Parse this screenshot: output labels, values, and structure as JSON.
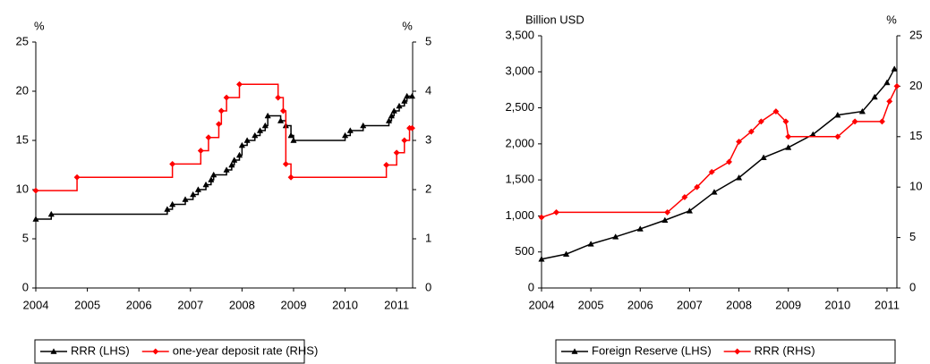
{
  "chart_data": [
    {
      "type": "line",
      "xlim": [
        2004,
        2011.31
      ],
      "xticks": [
        2004,
        2005,
        2006,
        2007,
        2008,
        2009,
        2010,
        2011
      ],
      "ylabel": "%",
      "ylim": [
        0,
        25
      ],
      "yticks": [
        0,
        5,
        10,
        15,
        20,
        25
      ],
      "y2label": "%",
      "y2lim": [
        0,
        5
      ],
      "y2ticks": [
        0,
        1,
        2,
        3,
        4,
        5
      ],
      "legend": "bottom",
      "series": [
        {
          "name": "RRR (LHS)",
          "color": "#000000",
          "marker": "triangle",
          "style": "step",
          "x": [
            2004.0,
            2004.3,
            2006.55,
            2006.65,
            2006.9,
            2007.05,
            2007.15,
            2007.3,
            2007.4,
            2007.45,
            2007.7,
            2007.8,
            2007.85,
            2007.95,
            2008.0,
            2008.1,
            2008.25,
            2008.35,
            2008.45,
            2008.5,
            2008.75,
            2008.85,
            2008.95,
            2009.0,
            2010.0,
            2010.1,
            2010.35,
            2010.85,
            2010.9,
            2010.95,
            2011.05,
            2011.15,
            2011.2,
            2011.3
          ],
          "values": [
            7,
            7.5,
            8,
            8.5,
            9,
            9.5,
            10,
            10.5,
            11,
            11.5,
            12,
            12.5,
            13,
            13.5,
            14.5,
            15,
            15.5,
            16,
            16.5,
            17.5,
            17,
            16.5,
            15.5,
            15,
            15.5,
            16,
            16.5,
            17,
            17.5,
            18,
            18.5,
            19,
            19.5,
            19.5
          ]
        },
        {
          "name": "one-year deposit rate (RHS)",
          "color": "#ff0000",
          "marker": "diamond",
          "style": "step",
          "axis": "y2",
          "x": [
            2004.0,
            2004.8,
            2006.65,
            2007.2,
            2007.35,
            2007.55,
            2007.6,
            2007.7,
            2007.95,
            2008.7,
            2008.8,
            2008.85,
            2008.95,
            2010.8,
            2011.0,
            2011.15,
            2011.25,
            2011.3
          ],
          "values": [
            1.98,
            2.25,
            2.52,
            2.79,
            3.06,
            3.33,
            3.6,
            3.87,
            4.14,
            3.87,
            3.6,
            2.52,
            2.25,
            2.5,
            2.75,
            3.0,
            3.25,
            3.25
          ]
        }
      ]
    },
    {
      "type": "line",
      "xlim": [
        2004,
        2011.2
      ],
      "xticks": [
        2004,
        2005,
        2006,
        2007,
        2008,
        2009,
        2010,
        2011
      ],
      "ylabel": "Billion USD",
      "ylim": [
        0,
        3500
      ],
      "yticks": [
        0,
        500,
        {
          "value": 1000,
          "label": "1,000"
        },
        {
          "value": 1500,
          "label": "1,500"
        },
        {
          "value": 2000,
          "label": "2,000"
        },
        {
          "value": 2500,
          "label": "2,500"
        },
        {
          "value": 3000,
          "label": "3,000"
        },
        {
          "value": 3500,
          "label": "3,500"
        }
      ],
      "y2label": "%",
      "y2lim": [
        0,
        25
      ],
      "y2ticks": [
        0,
        5,
        10,
        15,
        20,
        25
      ],
      "legend": "bottom",
      "series": [
        {
          "name": "Foreign Reserve (LHS)",
          "color": "#000000",
          "marker": "triangle",
          "style": "line",
          "x": [
            2004.0,
            2004.5,
            2005.0,
            2005.5,
            2006.0,
            2006.5,
            2007.0,
            2007.5,
            2008.0,
            2008.5,
            2009.0,
            2009.5,
            2010.0,
            2010.5,
            2010.75,
            2011.0,
            2011.15
          ],
          "values": [
            400,
            470,
            610,
            710,
            820,
            940,
            1070,
            1330,
            1530,
            1810,
            1950,
            2130,
            2400,
            2450,
            2650,
            2850,
            3040
          ]
        },
        {
          "name": "RRR (RHS)",
          "color": "#ff0000",
          "marker": "diamond",
          "style": "line",
          "axis": "y2",
          "x": [
            2004.0,
            2004.3,
            2006.55,
            2006.9,
            2007.15,
            2007.45,
            2007.8,
            2008.0,
            2008.25,
            2008.45,
            2008.75,
            2008.95,
            2009.0,
            2010.0,
            2010.35,
            2010.9,
            2011.05,
            2011.2
          ],
          "values": [
            7,
            7.5,
            7.5,
            9,
            10,
            11.5,
            12.5,
            14.5,
            15.5,
            16.5,
            17.5,
            16.5,
            15,
            15,
            16.5,
            16.5,
            18.5,
            20
          ]
        }
      ]
    }
  ]
}
